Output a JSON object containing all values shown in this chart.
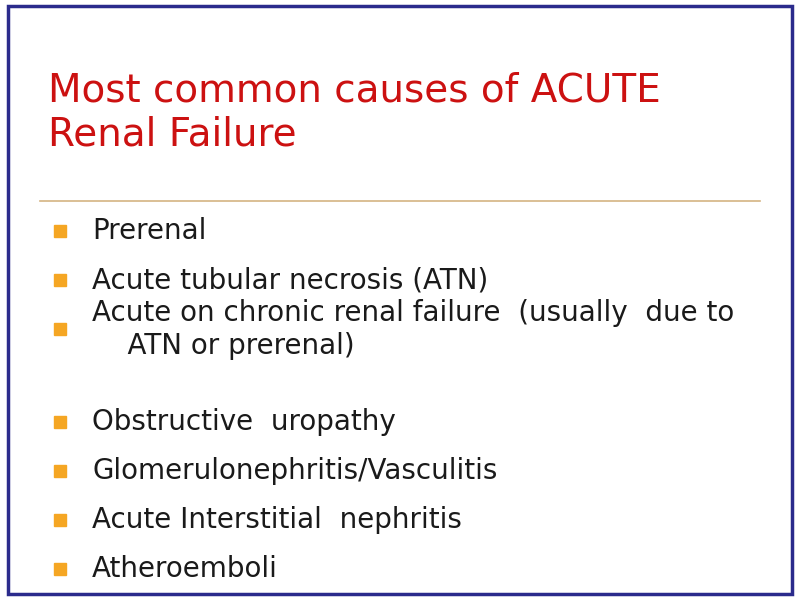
{
  "title_line1": "Most common causes of ACUTE",
  "title_line2": "Renal Failure",
  "title_color": "#cc1111",
  "title_fontsize": 28,
  "bullet_color": "#f5a623",
  "bullet_text_color": "#1a1a1a",
  "bullet_fontsize": 20,
  "background_color": "#ffffff",
  "border_color": "#2b2b8c",
  "separator_color": "#d4b483",
  "items": [
    "Prerenal",
    "Acute tubular necrosis (ATN)",
    "Acute on chronic renal failure  (usually  due to\n    ATN or prerenal)",
    "Obstructive  uropathy",
    "Glomerulonephritis/Vasculitis",
    "Acute Interstitial  nephritis",
    "Atheroemboli"
  ],
  "fig_width": 8.0,
  "fig_height": 6.0,
  "dpi": 100
}
